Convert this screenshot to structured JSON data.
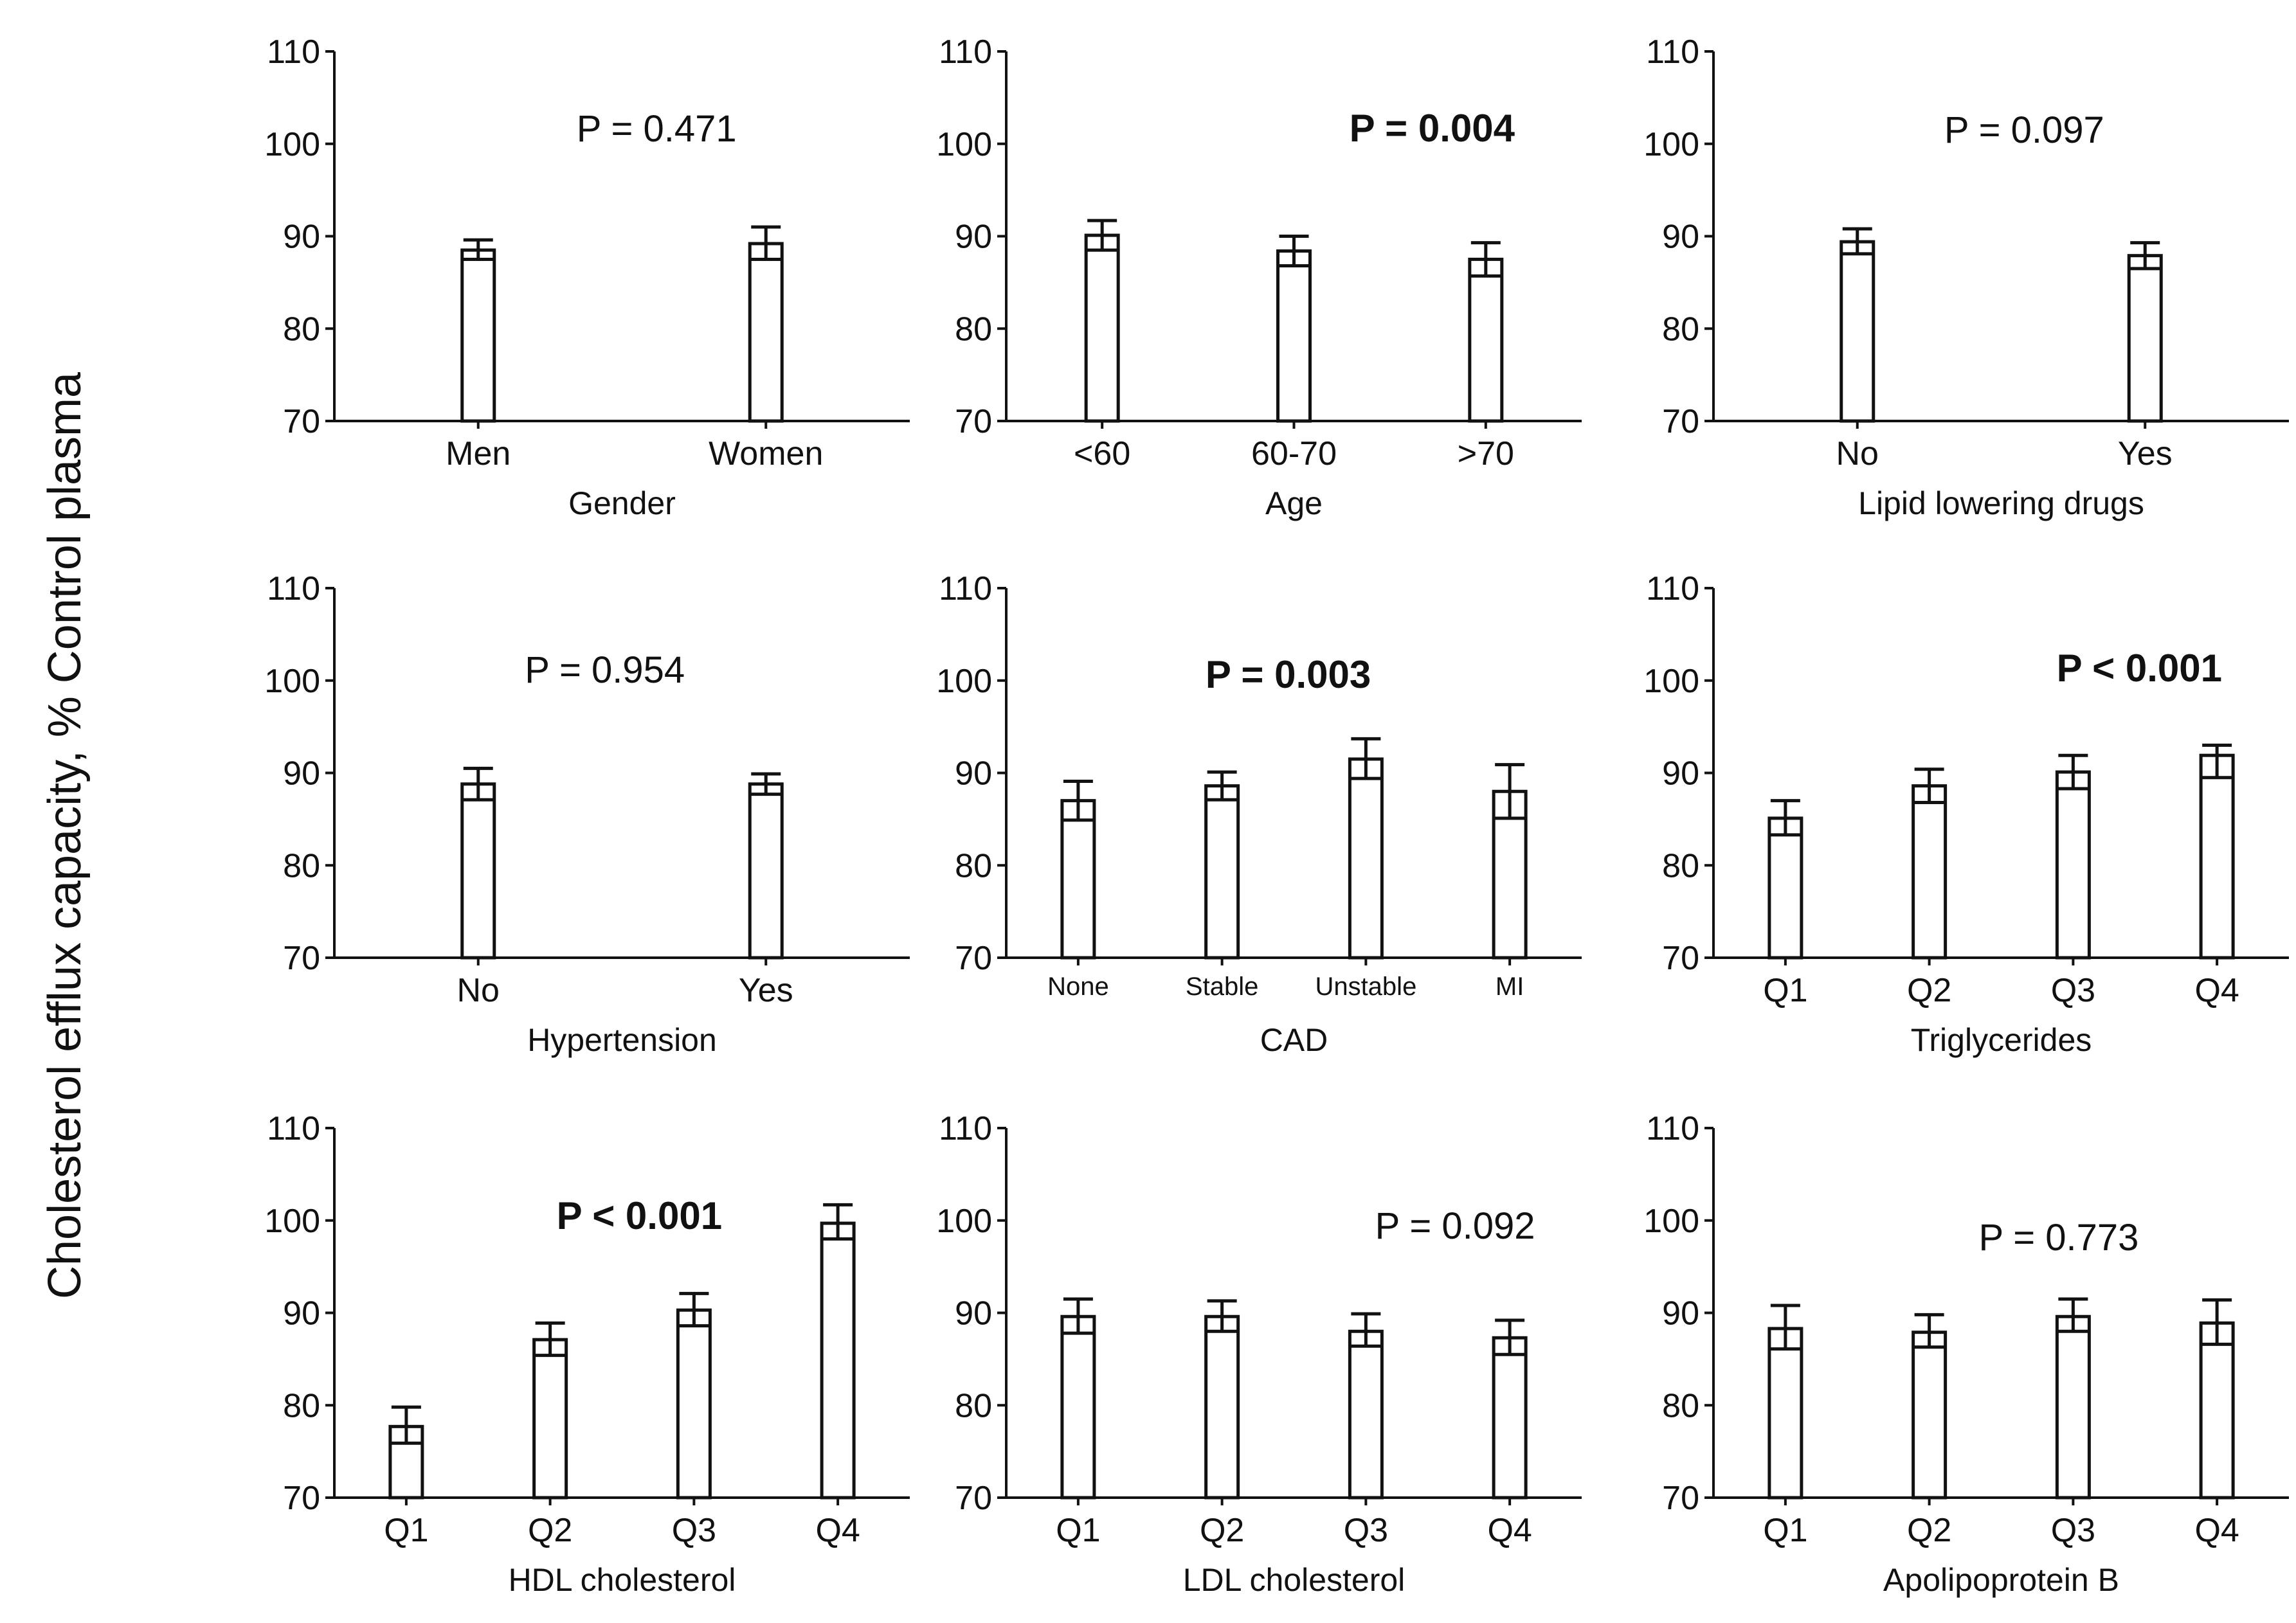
{
  "chart_data": {
    "type": "bar",
    "y_axis_title": "Cholesterol efflux capacity, % Control plasma",
    "ylim": [
      70,
      110
    ],
    "yticks": [
      70,
      80,
      90,
      100,
      110
    ],
    "panels": [
      {
        "name": "gender",
        "xlabel": "Gender",
        "categories": [
          "Men",
          "Women"
        ],
        "values": [
          88.5,
          89.2
        ],
        "err_low": [
          87.5,
          87.5
        ],
        "err_high": [
          89.6,
          91.0
        ],
        "p_value": "P = 0.471",
        "p_bold": false
      },
      {
        "name": "age",
        "xlabel": "Age",
        "categories": [
          "<60",
          "60-70",
          ">70"
        ],
        "values": [
          90.1,
          88.4,
          87.5
        ],
        "err_low": [
          88.5,
          86.8,
          85.7
        ],
        "err_high": [
          91.7,
          90.0,
          89.3
        ],
        "p_value": "P = 0.004",
        "p_bold": true
      },
      {
        "name": "lipid-lowering-drugs",
        "xlabel": "Lipid lowering drugs",
        "categories": [
          "No",
          "Yes"
        ],
        "values": [
          89.4,
          87.9
        ],
        "err_low": [
          88.1,
          86.5
        ],
        "err_high": [
          90.8,
          89.3
        ],
        "p_value": "P = 0.097",
        "p_bold": false
      },
      {
        "name": "hypertension",
        "xlabel": "Hypertension",
        "categories": [
          "No",
          "Yes"
        ],
        "values": [
          88.8,
          88.8
        ],
        "err_low": [
          87.1,
          87.7
        ],
        "err_high": [
          90.5,
          89.9
        ],
        "p_value": "P = 0.954",
        "p_bold": false
      },
      {
        "name": "cad",
        "xlabel": "CAD",
        "categories": [
          "None",
          "Stable",
          "Unstable",
          "MI"
        ],
        "small_categories": true,
        "values": [
          87.0,
          88.6,
          91.5,
          88.0
        ],
        "err_low": [
          84.9,
          87.1,
          89.4,
          85.1
        ],
        "err_high": [
          89.1,
          90.1,
          93.7,
          90.9
        ],
        "p_value": "P = 0.003",
        "p_bold": true
      },
      {
        "name": "triglycerides",
        "xlabel": "Triglycerides",
        "categories": [
          "Q1",
          "Q2",
          "Q3",
          "Q4"
        ],
        "values": [
          85.1,
          88.6,
          90.1,
          91.9
        ],
        "err_low": [
          83.3,
          86.8,
          88.3,
          89.5
        ],
        "err_high": [
          87.0,
          90.4,
          91.9,
          93.0
        ],
        "p_value": "P < 0.001",
        "p_bold": true
      },
      {
        "name": "hdl-cholesterol",
        "xlabel": "HDL cholesterol",
        "categories": [
          "Q1",
          "Q2",
          "Q3",
          "Q4"
        ],
        "values": [
          77.7,
          87.1,
          90.3,
          99.7
        ],
        "err_low": [
          75.9,
          85.4,
          88.6,
          98.0
        ],
        "err_high": [
          79.8,
          88.9,
          92.1,
          101.7
        ],
        "p_value": "P < 0.001",
        "p_bold": true
      },
      {
        "name": "ldl-cholesterol",
        "xlabel": "LDL cholesterol",
        "categories": [
          "Q1",
          "Q2",
          "Q3",
          "Q4"
        ],
        "values": [
          89.6,
          89.6,
          88.0,
          87.3
        ],
        "err_low": [
          87.8,
          88.0,
          86.4,
          85.5
        ],
        "err_high": [
          91.5,
          91.3,
          89.9,
          89.2
        ],
        "p_value": "P = 0.092",
        "p_bold": false
      },
      {
        "name": "apolipoprotein-b",
        "xlabel": "Apolipoprotein B",
        "categories": [
          "Q1",
          "Q2",
          "Q3",
          "Q4"
        ],
        "values": [
          88.3,
          87.9,
          89.6,
          88.9
        ],
        "err_low": [
          86.1,
          86.3,
          88.0,
          86.6
        ],
        "err_high": [
          90.8,
          89.8,
          91.5,
          91.4
        ],
        "p_value": "P = 0.773",
        "p_bold": false
      }
    ]
  }
}
